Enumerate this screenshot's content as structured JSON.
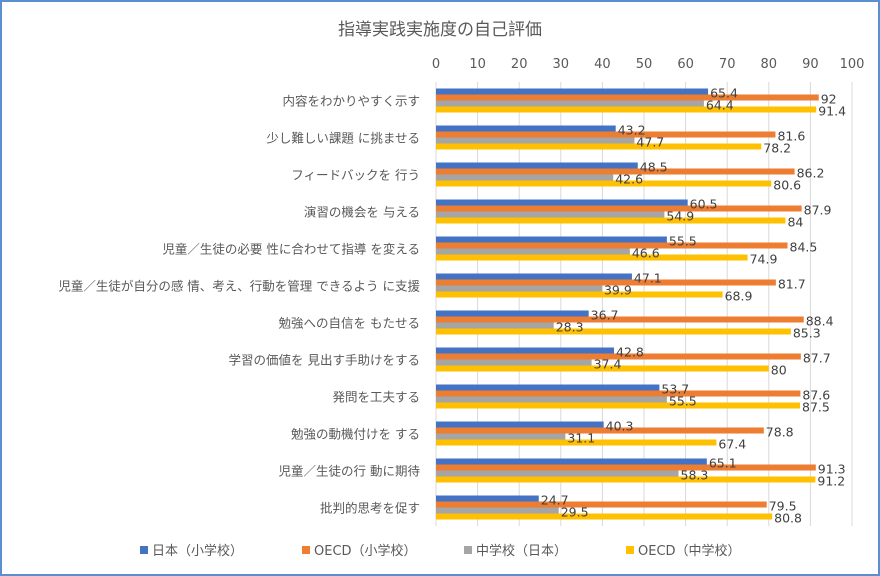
{
  "chart_data": {
    "type": "bar",
    "orientation": "horizontal",
    "title": "指導実践実施度の自己評価",
    "xlim": [
      0,
      100
    ],
    "xticks": [
      0,
      10,
      20,
      30,
      40,
      50,
      60,
      70,
      80,
      90,
      100
    ],
    "grid": true,
    "legend_position": "bottom",
    "categories": [
      "内容をわかりやすく示す",
      "少し難しい課題 に挑ませる",
      "フィードバックを 行う",
      "演習の機会を 与える",
      "児童／生徒の必要 性に合わせて指導 を変える",
      "児童／生徒が自分の感 情、考え、行動を管理 できるよう に支援",
      "勉強への自信を もたせる",
      "学習の価値を 見出す手助けをする",
      "発問を工夫する",
      "勉強の動機付けを する",
      "児童／生徒の行 動に期待",
      "批判的思考を促す"
    ],
    "series": [
      {
        "name": "日本（小学校）",
        "color": "#4472c4",
        "values": [
          65.4,
          43.2,
          48.5,
          60.5,
          55.5,
          47.1,
          36.7,
          42.8,
          53.7,
          40.3,
          65.1,
          24.7
        ]
      },
      {
        "name": "OECD（小学校）",
        "color": "#ed7d31",
        "values": [
          92,
          81.6,
          86.2,
          87.9,
          84.5,
          81.7,
          88.4,
          87.7,
          87.6,
          78.8,
          91.3,
          79.5
        ]
      },
      {
        "name": "中学校（日本）",
        "color": "#a5a5a5",
        "values": [
          64.4,
          47.7,
          42.6,
          54.9,
          46.6,
          39.9,
          28.3,
          37.4,
          55.5,
          31.1,
          58.3,
          29.5
        ]
      },
      {
        "name": "OECD（中学校）",
        "color": "#ffc000",
        "values": [
          91.4,
          78.2,
          80.6,
          84,
          74.9,
          68.9,
          85.3,
          80,
          87.5,
          67.4,
          91.2,
          80.8
        ]
      }
    ]
  }
}
